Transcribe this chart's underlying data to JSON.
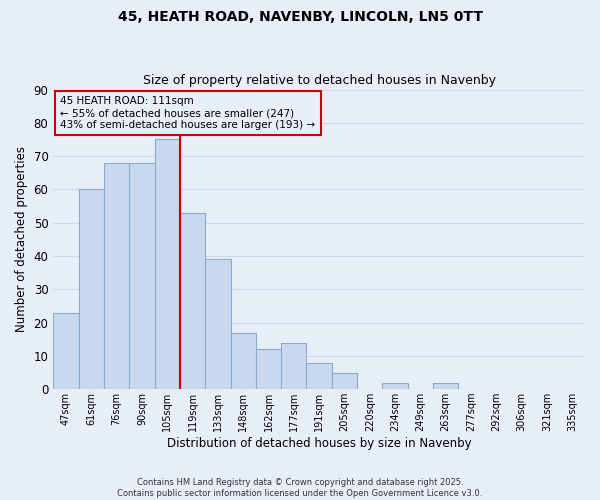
{
  "title": "45, HEATH ROAD, NAVENBY, LINCOLN, LN5 0TT",
  "subtitle": "Size of property relative to detached houses in Navenby",
  "xlabel": "Distribution of detached houses by size in Navenby",
  "ylabel": "Number of detached properties",
  "bar_color": "#c8d8ee",
  "bar_edge_color": "#8aabcc",
  "background_color": "#e8eef8",
  "grid_color": "#d0d8e8",
  "categories": [
    "47sqm",
    "61sqm",
    "76sqm",
    "90sqm",
    "105sqm",
    "119sqm",
    "133sqm",
    "148sqm",
    "162sqm",
    "177sqm",
    "191sqm",
    "205sqm",
    "220sqm",
    "234sqm",
    "249sqm",
    "263sqm",
    "277sqm",
    "292sqm",
    "306sqm",
    "321sqm",
    "335sqm"
  ],
  "values": [
    23,
    60,
    68,
    68,
    75,
    53,
    39,
    17,
    12,
    14,
    8,
    5,
    0,
    2,
    0,
    2,
    0,
    0,
    0,
    0,
    0
  ],
  "ylim": [
    0,
    90
  ],
  "yticks": [
    0,
    10,
    20,
    30,
    40,
    50,
    60,
    70,
    80,
    90
  ],
  "vline_x": 4.5,
  "vline_color": "#cc0000",
  "annotation_title": "45 HEATH ROAD: 111sqm",
  "annotation_line1": "← 55% of detached houses are smaller (247)",
  "annotation_line2": "43% of semi-detached houses are larger (193) →",
  "footnote1": "Contains HM Land Registry data © Crown copyright and database right 2025.",
  "footnote2": "Contains public sector information licensed under the Open Government Licence v3.0."
}
